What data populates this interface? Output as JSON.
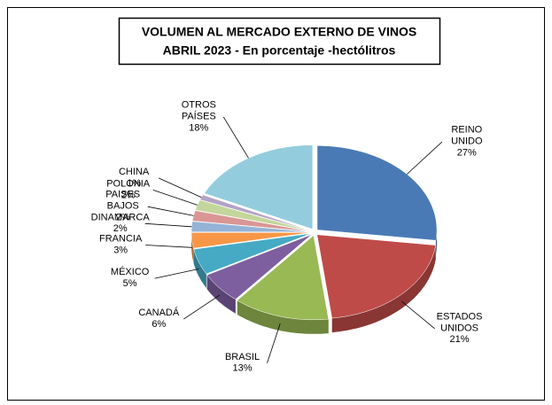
{
  "chart_data": {
    "type": "pie",
    "title": "VOLUMEN AL MERCADO EXTERNO DE VINOS",
    "subtitle": "ABRIL 2023 - En porcentaje -hectólitros",
    "categories": [
      "REINO UNIDO",
      "ESTADOS UNIDOS",
      "BRASIL",
      "CANADÁ",
      "MÉXICO",
      "FRANCIA",
      "DINAMARCA",
      "PAISES BAJOS",
      "POLONIA",
      "CHINA",
      "OTROS PAÍSES"
    ],
    "values": [
      27,
      21,
      13,
      6,
      5,
      3,
      2,
      2,
      2,
      1,
      18
    ],
    "value_labels": [
      "27%",
      "21%",
      "13%",
      "6%",
      "5%",
      "3%",
      "2%",
      "2%",
      "2%",
      "1%",
      "18%"
    ],
    "colors": [
      "#4a7ab5",
      "#be4b48",
      "#98b954",
      "#7d5fa0",
      "#46aac5",
      "#f79646",
      "#95b3d7",
      "#d99694",
      "#c3d69b",
      "#b3a2c7",
      "#93cddd"
    ]
  }
}
